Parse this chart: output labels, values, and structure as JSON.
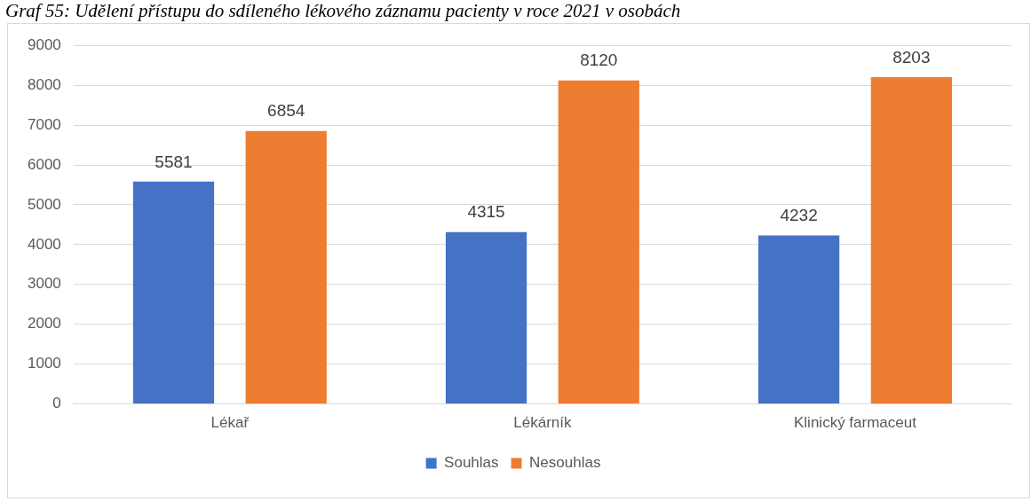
{
  "chart_data": {
    "type": "bar",
    "title": "Graf 55: Udělení přístupu do sdíleného lékového záznamu pacienty v roce 2021 v osobách",
    "categories": [
      "Lékař",
      "Lékárník",
      "Klinický farmaceut"
    ],
    "series": [
      {
        "name": "Souhlas",
        "color": "#4472c4",
        "values": [
          5581,
          4315,
          4232
        ]
      },
      {
        "name": "Nesouhlas",
        "color": "#ed7d31",
        "values": [
          6854,
          8120,
          8203
        ]
      }
    ],
    "ylim": [
      0,
      9000
    ],
    "yticks": [
      0,
      1000,
      2000,
      3000,
      4000,
      5000,
      6000,
      7000,
      8000,
      9000
    ],
    "grid": "y",
    "legend": "bottom",
    "data_labels": true
  }
}
